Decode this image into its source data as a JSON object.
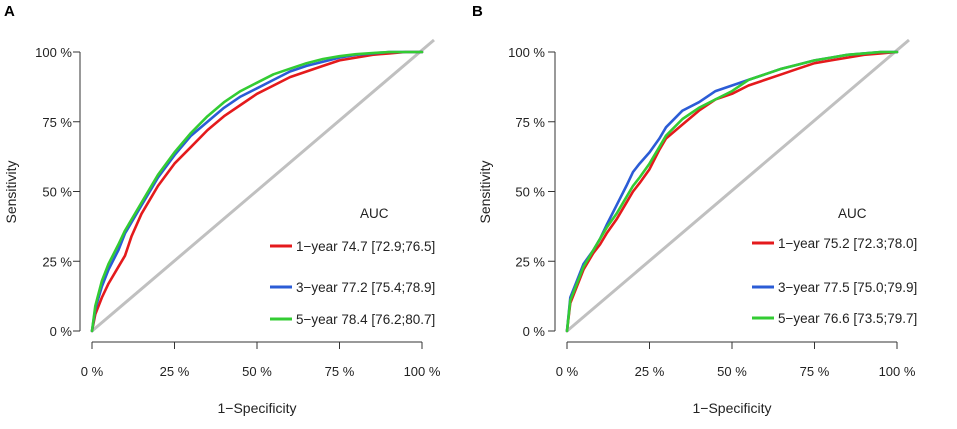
{
  "chart_data": [
    {
      "type": "line",
      "panel_label": "A",
      "title": "",
      "xlabel": "1−Specificity",
      "ylabel": "Sensitivity",
      "xlim": [
        0,
        100
      ],
      "ylim": [
        0,
        100
      ],
      "x_ticks": [
        "0 %",
        "25 %",
        "50 %",
        "75 %",
        "100 %"
      ],
      "y_ticks": [
        "0 %",
        "25 %",
        "50 %",
        "75 %",
        "100 %"
      ],
      "legend_title": "AUC",
      "legend_position": "bottom-right",
      "reference_line": {
        "color": "#c0c0c0",
        "from": [
          0,
          0
        ],
        "to": [
          100,
          100
        ]
      },
      "series": [
        {
          "name": "1−year",
          "label": "1−year  74.7 [72.9;76.5]",
          "color": "#e41a1c",
          "x": [
            0,
            1,
            3,
            5,
            8,
            10,
            12,
            15,
            18,
            20,
            25,
            30,
            35,
            40,
            45,
            50,
            55,
            60,
            65,
            70,
            75,
            80,
            85,
            90,
            95,
            100
          ],
          "y": [
            0,
            6,
            12,
            17,
            23,
            27,
            34,
            42,
            48,
            52,
            60,
            66,
            72,
            77,
            81,
            85,
            88,
            91,
            93,
            95,
            97,
            98,
            99,
            99.5,
            100,
            100
          ]
        },
        {
          "name": "3−year",
          "label": "3−year  77.2 [75.4;78.9]",
          "color": "#2b5cd6",
          "x": [
            0,
            1,
            3,
            5,
            8,
            10,
            12,
            15,
            18,
            20,
            25,
            30,
            35,
            40,
            45,
            50,
            55,
            60,
            65,
            70,
            75,
            80,
            85,
            90,
            95,
            100
          ],
          "y": [
            0,
            8,
            16,
            22,
            29,
            35,
            39,
            45,
            51,
            55,
            63,
            70,
            75,
            80,
            84,
            87,
            90,
            93,
            95,
            96.5,
            98,
            99,
            99.5,
            100,
            100,
            100
          ]
        },
        {
          "name": "5−year",
          "label": "5−year  78.4 [76.2;80.7]",
          "color": "#33cc33",
          "x": [
            0,
            1,
            3,
            5,
            8,
            10,
            12,
            15,
            18,
            20,
            25,
            30,
            35,
            40,
            45,
            50,
            55,
            60,
            65,
            70,
            75,
            80,
            85,
            90,
            95,
            100
          ],
          "y": [
            0,
            9,
            18,
            24,
            31,
            36,
            40,
            46,
            52,
            56,
            64,
            71,
            77,
            82,
            86,
            89,
            92,
            94,
            96,
            97.5,
            98.5,
            99.2,
            99.6,
            100,
            100,
            100
          ]
        }
      ]
    },
    {
      "type": "line",
      "panel_label": "B",
      "title": "",
      "xlabel": "1−Specificity",
      "ylabel": "Sensitivity",
      "xlim": [
        0,
        100
      ],
      "ylim": [
        0,
        100
      ],
      "x_ticks": [
        "0 %",
        "25 %",
        "50 %",
        "75 %",
        "100 %"
      ],
      "y_ticks": [
        "0 %",
        "25 %",
        "50 %",
        "75 %",
        "100 %"
      ],
      "legend_title": "AUC",
      "legend_position": "bottom-right",
      "reference_line": {
        "color": "#c0c0c0",
        "from": [
          0,
          0
        ],
        "to": [
          100,
          100
        ]
      },
      "series": [
        {
          "name": "1−year",
          "label": "1−year  75.2 [72.3;78.0]",
          "color": "#e41a1c",
          "x": [
            0,
            1,
            3,
            5,
            8,
            10,
            12,
            15,
            18,
            20,
            22,
            25,
            28,
            30,
            35,
            40,
            45,
            50,
            55,
            60,
            65,
            70,
            75,
            80,
            85,
            90,
            95,
            100
          ],
          "y": [
            0,
            10,
            16,
            22,
            28,
            31,
            35,
            40,
            46,
            50,
            53,
            58,
            65,
            69,
            74,
            79,
            83,
            85,
            88,
            90,
            92,
            94,
            96,
            97,
            98,
            99,
            99.5,
            100
          ]
        },
        {
          "name": "3−year",
          "label": "3−year  77.5 [75.0;79.9]",
          "color": "#2b5cd6",
          "x": [
            0,
            1,
            3,
            5,
            8,
            10,
            12,
            15,
            18,
            20,
            22,
            25,
            28,
            30,
            35,
            40,
            45,
            50,
            55,
            60,
            65,
            70,
            75,
            80,
            85,
            90,
            95,
            100
          ],
          "y": [
            0,
            12,
            18,
            24,
            29,
            33,
            38,
            45,
            52,
            57,
            60,
            64,
            69,
            73,
            79,
            82,
            86,
            88,
            90,
            92,
            94,
            95.5,
            97,
            98,
            99,
            99.5,
            100,
            100
          ]
        },
        {
          "name": "5−year",
          "label": "5−year  76.6 [73.5;79.7]",
          "color": "#33cc33",
          "x": [
            0,
            1,
            3,
            5,
            8,
            10,
            12,
            15,
            18,
            20,
            22,
            25,
            28,
            30,
            35,
            40,
            45,
            50,
            55,
            60,
            65,
            70,
            75,
            80,
            85,
            90,
            95,
            100
          ],
          "y": [
            0,
            11,
            17,
            23,
            29,
            33,
            37,
            42,
            48,
            52,
            55,
            60,
            66,
            70,
            76,
            80,
            83,
            86,
            90,
            92,
            94,
            95.5,
            97,
            98,
            99,
            99.5,
            100,
            100
          ]
        }
      ]
    }
  ]
}
